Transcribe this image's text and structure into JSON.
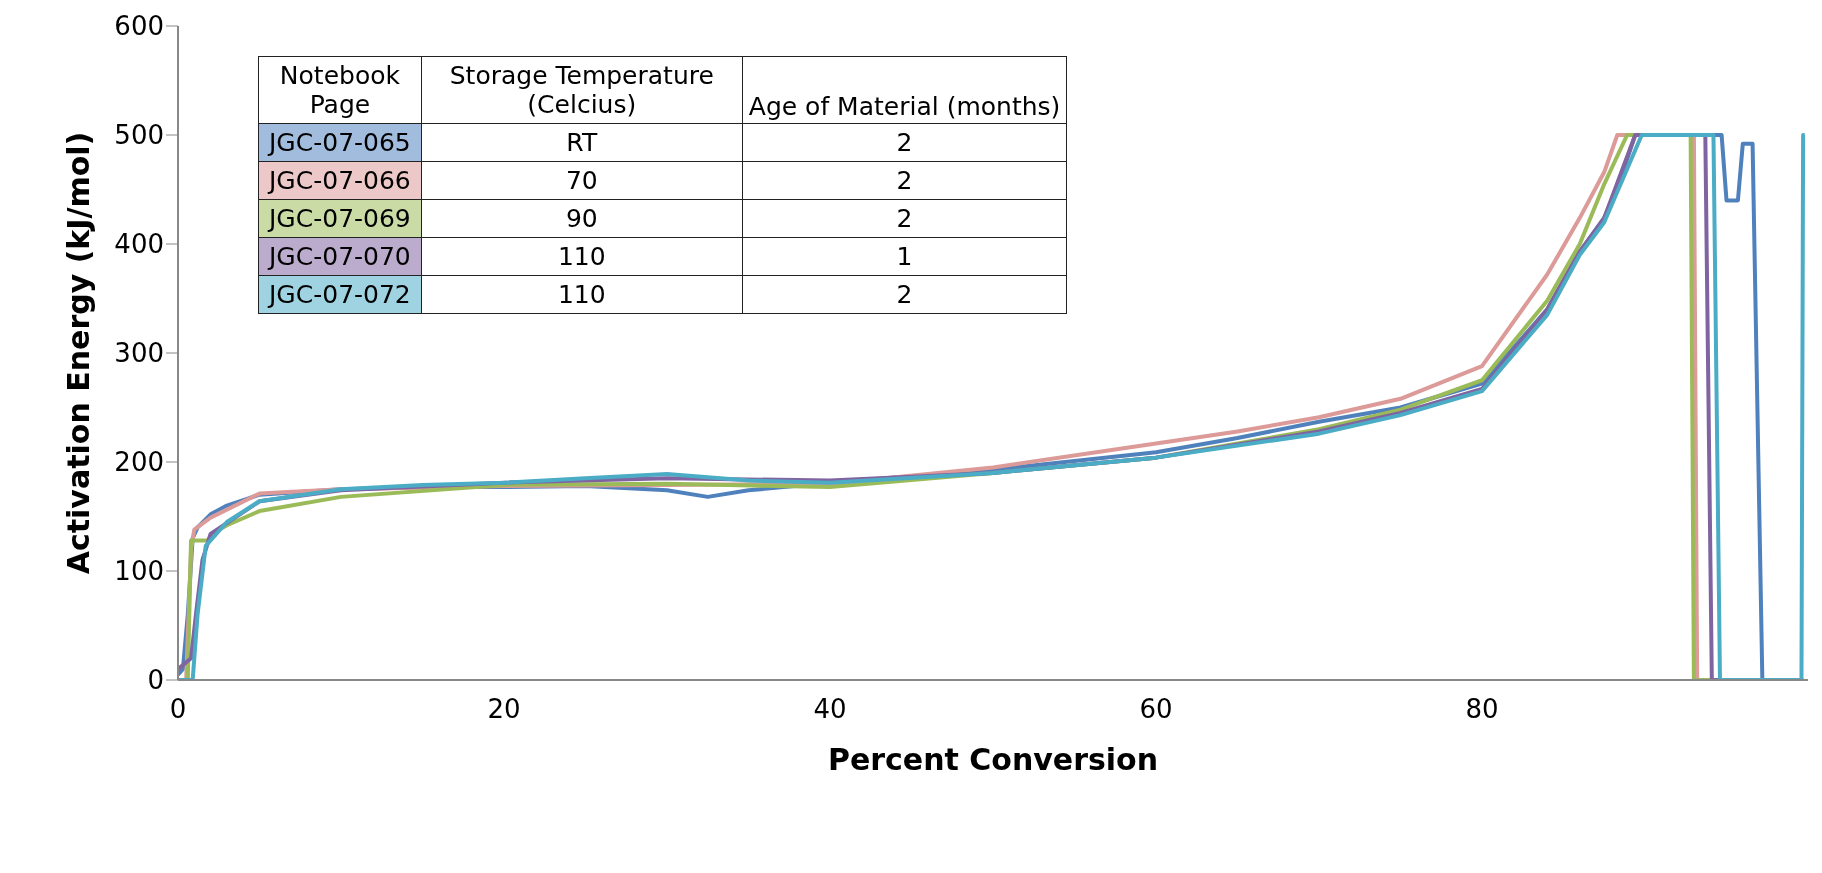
{
  "chart_data": {
    "type": "line",
    "xlabel": "Percent Conversion",
    "ylabel": "Activation Energy (kJ/mol)",
    "legend_title": "Notebook\nPage",
    "legend": "top left",
    "xlim": [
      0,
      100
    ],
    "xticks": [
      0,
      20,
      40,
      60,
      80
    ],
    "ylim": [
      0,
      600
    ],
    "yticks": [
      0,
      100,
      200,
      300,
      400,
      500,
      600
    ],
    "grid": false,
    "marker": "none",
    "line_style": "solid",
    "annotations": [
      "Storage Temperature\n(Celcius)",
      "Age of Material (months)",
      "RT",
      "2",
      "70",
      "2",
      "90",
      "2",
      "110",
      "1",
      "110",
      "2"
    ],
    "series": [
      {
        "name": "JGC-07-065",
        "color": "#4f81bd",
        "x": [
          0,
          0.3,
          0.6,
          0.9,
          1.2,
          2,
          3,
          5,
          10,
          15,
          20,
          25,
          30,
          32.5,
          35,
          40,
          50,
          60,
          65,
          70,
          75,
          80,
          84,
          86,
          87.5,
          88.5,
          89.4,
          94.7,
          95,
          95.7,
          96,
          96.6,
          97.2,
          99.7
        ],
        "values": [
          5,
          10,
          60,
          130,
          140,
          152,
          160,
          170,
          175,
          177,
          177,
          178,
          174,
          168,
          174,
          181,
          193,
          209,
          222,
          237,
          250,
          272,
          340,
          393,
          424,
          460,
          500,
          500,
          440,
          440,
          492,
          492,
          0,
          0
        ]
      },
      {
        "name": "JGC-07-066",
        "color": "#dc9a98",
        "x": [
          0,
          0.5,
          0.8,
          1,
          2,
          5,
          10,
          20,
          30,
          40,
          50,
          60,
          65,
          70,
          75,
          80,
          84,
          86,
          87.5,
          88.3,
          93,
          93.2,
          99.7
        ],
        "values": [
          0,
          0,
          120,
          138,
          149,
          171,
          175,
          178,
          179,
          180,
          195,
          217,
          228,
          241,
          258,
          288,
          372,
          424,
          466,
          500,
          500,
          0,
          0
        ]
      },
      {
        "name": "JGC-07-069",
        "color": "#9bbb59",
        "x": [
          0,
          0.6,
          0.8,
          1.8,
          2.2,
          3,
          5,
          10,
          20,
          30,
          40,
          50,
          60,
          70,
          75,
          80,
          84,
          86,
          87.5,
          88.9,
          92.8,
          93,
          99.7
        ],
        "values": [
          0,
          0,
          128,
          128,
          135,
          142,
          155,
          168,
          179,
          180,
          177,
          190,
          204,
          230,
          248,
          275,
          348,
          400,
          455,
          500,
          500,
          0,
          0
        ]
      },
      {
        "name": "JGC-07-070",
        "color": "#8064a2",
        "x": [
          0,
          0.8,
          1.1,
          1.5,
          2,
          5,
          10,
          20,
          30,
          40,
          50,
          60,
          70,
          75,
          80,
          84,
          86,
          87.5,
          89.4,
          93.7,
          94.1,
          99.7
        ],
        "values": [
          10,
          20,
          60,
          110,
          134,
          164,
          174,
          181,
          185,
          183,
          190,
          204,
          228,
          245,
          267,
          340,
          393,
          424,
          500,
          500,
          0,
          0
        ]
      },
      {
        "name": "JGC-07-072",
        "color": "#4bacc6",
        "x": [
          0,
          0.9,
          1.2,
          1.7,
          3,
          5,
          10,
          15,
          20,
          25,
          30,
          35,
          40,
          50,
          60,
          70,
          75,
          80,
          84,
          86,
          87.5,
          89.8,
          94.2,
          94.6,
          99.6,
          99.7,
          99.8
        ],
        "values": [
          0,
          0,
          60,
          123,
          145,
          164,
          175,
          179,
          181,
          185,
          189,
          183,
          181,
          190,
          204,
          226,
          243,
          265,
          335,
          390,
          420,
          500,
          500,
          0,
          0,
          500,
          500
        ]
      }
    ]
  }
}
